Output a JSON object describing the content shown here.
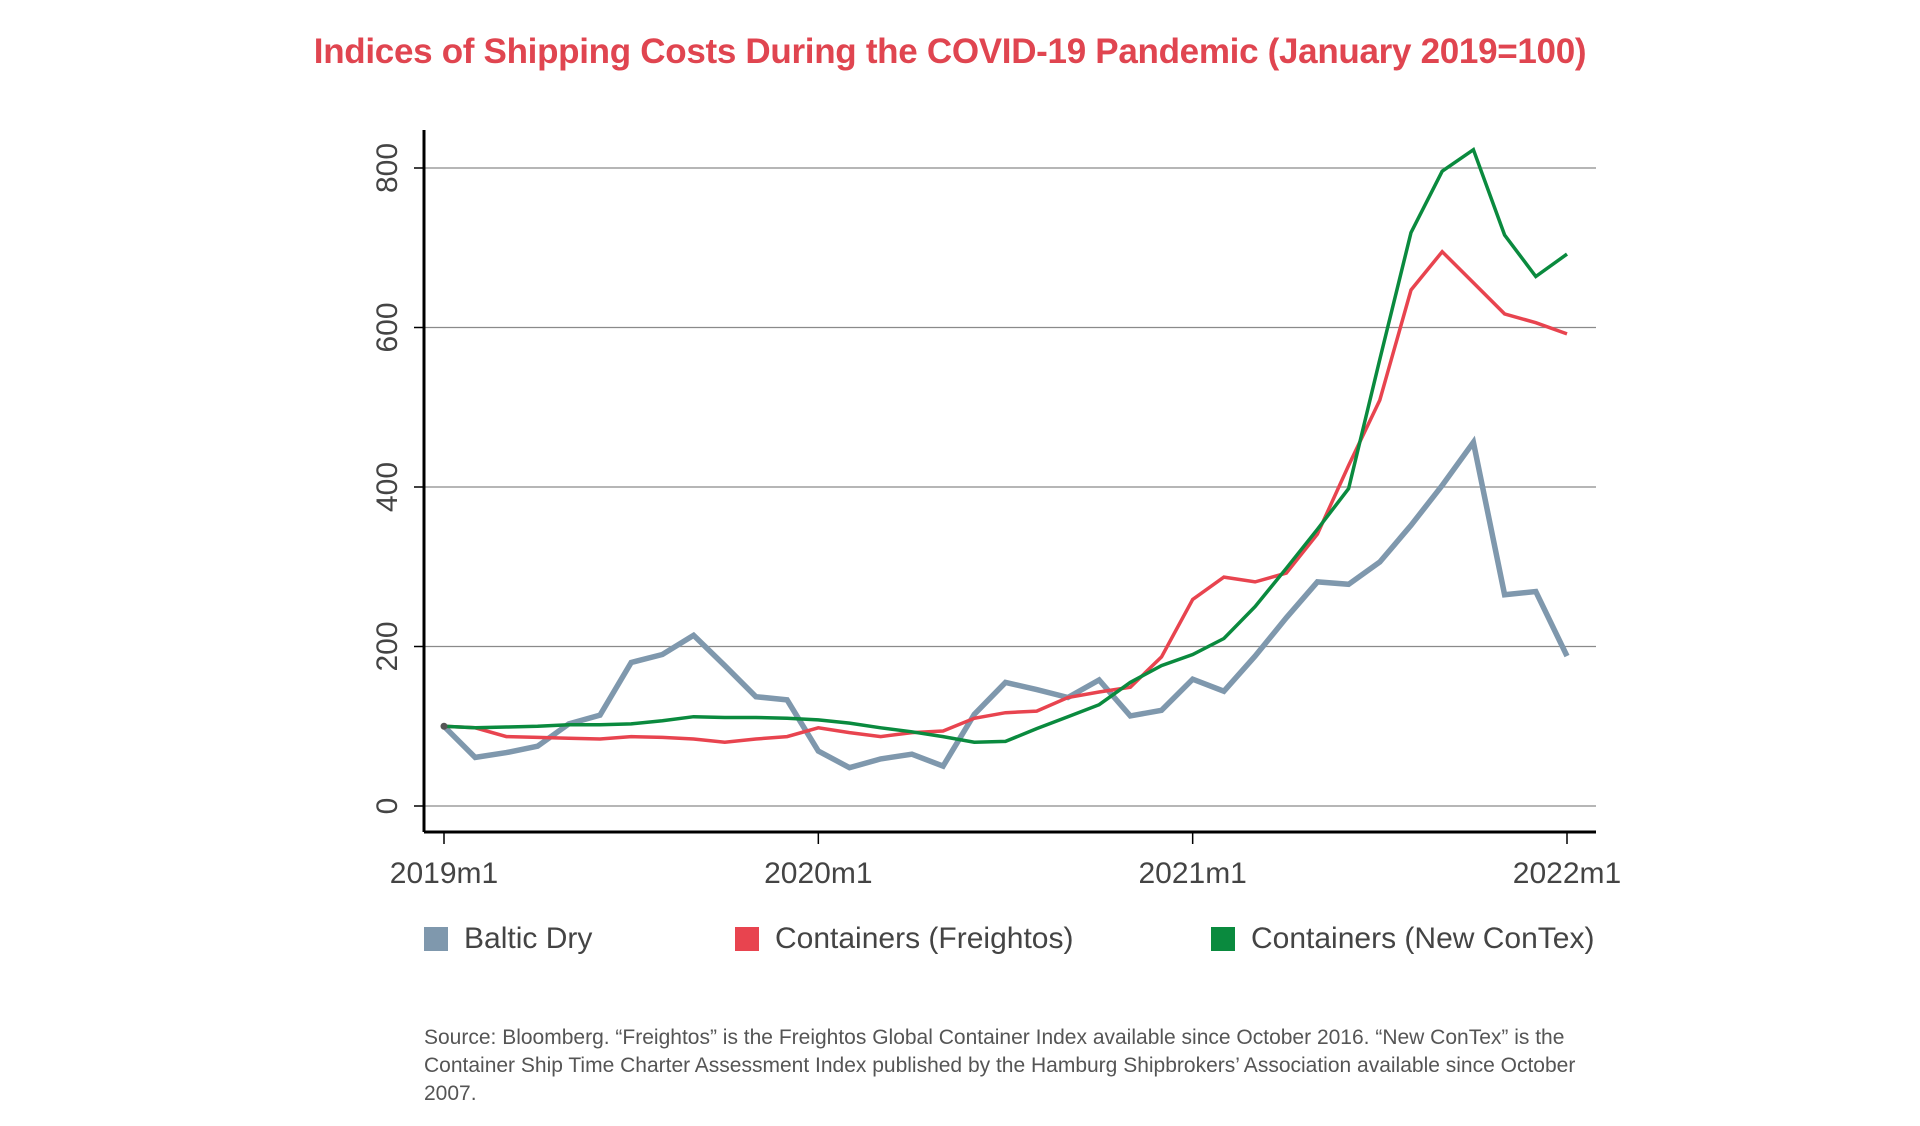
{
  "chart_data": {
    "type": "line",
    "title": "Indices of Shipping Costs During the COVID-19 Pandemic (January 2019=100)",
    "title_color": "#e04550",
    "x_start": "2019m1",
    "x_frequency": "monthly",
    "x_tick_labels": [
      "2019m1",
      "2020m1",
      "2021m1",
      "2022m1"
    ],
    "y_tick_labels": [
      "0",
      "200",
      "400",
      "600",
      "800"
    ],
    "ylim": [
      0,
      800
    ],
    "grid": true,
    "legend_position": "bottom",
    "series": [
      {
        "name": "Baltic Dry",
        "color": "#7f98ad",
        "values": [
          100,
          61,
          67,
          75,
          103,
          114,
          180,
          190,
          214,
          176,
          137,
          133,
          69,
          48,
          59,
          65,
          50,
          115,
          155,
          146,
          136,
          158,
          113,
          120,
          159,
          144,
          188,
          236,
          281,
          278,
          306,
          352,
          402,
          456,
          265,
          269,
          188
        ]
      },
      {
        "name": "Containers (Freightos)",
        "color": "#e8444f",
        "values": [
          100,
          98,
          87,
          86,
          85,
          84,
          87,
          86,
          84,
          80,
          84,
          87,
          98,
          92,
          87,
          92,
          94,
          110,
          117,
          119,
          136,
          143,
          149,
          187,
          259,
          287,
          281,
          292,
          341,
          427,
          509,
          647,
          695,
          656,
          617,
          606,
          592
        ]
      },
      {
        "name": "Containers (New ConTex)",
        "color": "#0a8a3e",
        "values": [
          100,
          98,
          99,
          100,
          102,
          102,
          103,
          107,
          112,
          111,
          111,
          110,
          108,
          104,
          98,
          93,
          87,
          80,
          81,
          97,
          112,
          127,
          155,
          176,
          190,
          210,
          250,
          298,
          347,
          398,
          560,
          719,
          796,
          823,
          716,
          664,
          692
        ]
      }
    ]
  },
  "source_note": "Source: Bloomberg. “Freightos” is the Freightos Global Container Index available since October 2016. “New ConTex” is the Container Ship Time Charter Assessment Index published by the Hamburg Shipbrokers’ Association available since October 2007."
}
